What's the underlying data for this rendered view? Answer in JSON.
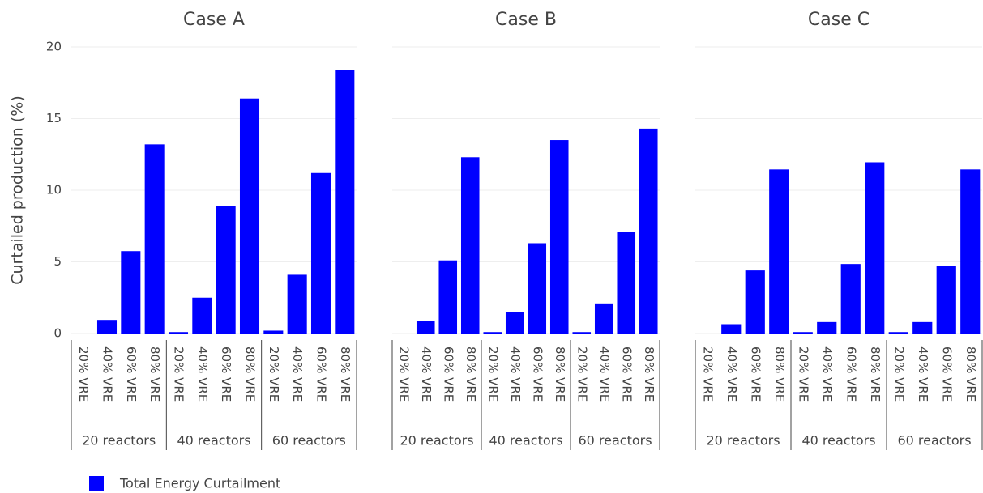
{
  "chart_data": [
    {
      "type": "bar",
      "title": "Case A",
      "ylabel": "Curtailed production (%)",
      "ytick_labels": true,
      "ylim": [
        0,
        20
      ],
      "yticks": [
        0,
        5,
        10,
        15,
        20
      ],
      "grid": true,
      "groups": [
        {
          "name": "20 reactors",
          "categories": [
            "20% VRE",
            "40% VRE",
            "60% VRE",
            "80% VRE"
          ]
        },
        {
          "name": "40 reactors",
          "categories": [
            "20% VRE",
            "40% VRE",
            "60% VRE",
            "80% VRE"
          ]
        },
        {
          "name": "60 reactors",
          "categories": [
            "20% VRE",
            "40% VRE",
            "60% VRE",
            "80% VRE"
          ]
        }
      ],
      "values": [
        0,
        0.95,
        5.75,
        13.2,
        0.1,
        2.5,
        8.9,
        16.4,
        0.2,
        4.1,
        11.2,
        18.4
      ]
    },
    {
      "type": "bar",
      "title": "Case B",
      "ytick_labels": false,
      "ylim": [
        0,
        20
      ],
      "yticks": [
        0,
        5,
        10,
        15,
        20
      ],
      "grid": true,
      "groups": [
        {
          "name": "20 reactors",
          "categories": [
            "20% VRE",
            "40% VRE",
            "60% VRE",
            "80% VRE"
          ]
        },
        {
          "name": "40 reactors",
          "categories": [
            "20% VRE",
            "40% VRE",
            "60% VRE",
            "80% VRE"
          ]
        },
        {
          "name": "60 reactors",
          "categories": [
            "20% VRE",
            "40% VRE",
            "60% VRE",
            "80% VRE"
          ]
        }
      ],
      "values": [
        0,
        0.9,
        5.1,
        12.3,
        0.1,
        1.5,
        6.3,
        13.5,
        0.1,
        2.1,
        7.1,
        14.3
      ]
    },
    {
      "type": "bar",
      "title": "Case C",
      "ytick_labels": false,
      "ylim": [
        0,
        20
      ],
      "yticks": [
        0,
        5,
        10,
        15,
        20
      ],
      "grid": true,
      "groups": [
        {
          "name": "20 reactors",
          "categories": [
            "20% VRE",
            "40% VRE",
            "60% VRE",
            "80% VRE"
          ]
        },
        {
          "name": "40 reactors",
          "categories": [
            "20% VRE",
            "40% VRE",
            "60% VRE",
            "80% VRE"
          ]
        },
        {
          "name": "60 reactors",
          "categories": [
            "20% VRE",
            "40% VRE",
            "60% VRE",
            "80% VRE"
          ]
        }
      ],
      "values": [
        0,
        0.65,
        4.4,
        11.45,
        0.1,
        0.8,
        4.85,
        11.95,
        0.1,
        0.8,
        4.7,
        11.45
      ]
    }
  ],
  "legend": {
    "name": "Total Energy Curtailment",
    "color": "#0000ff"
  }
}
